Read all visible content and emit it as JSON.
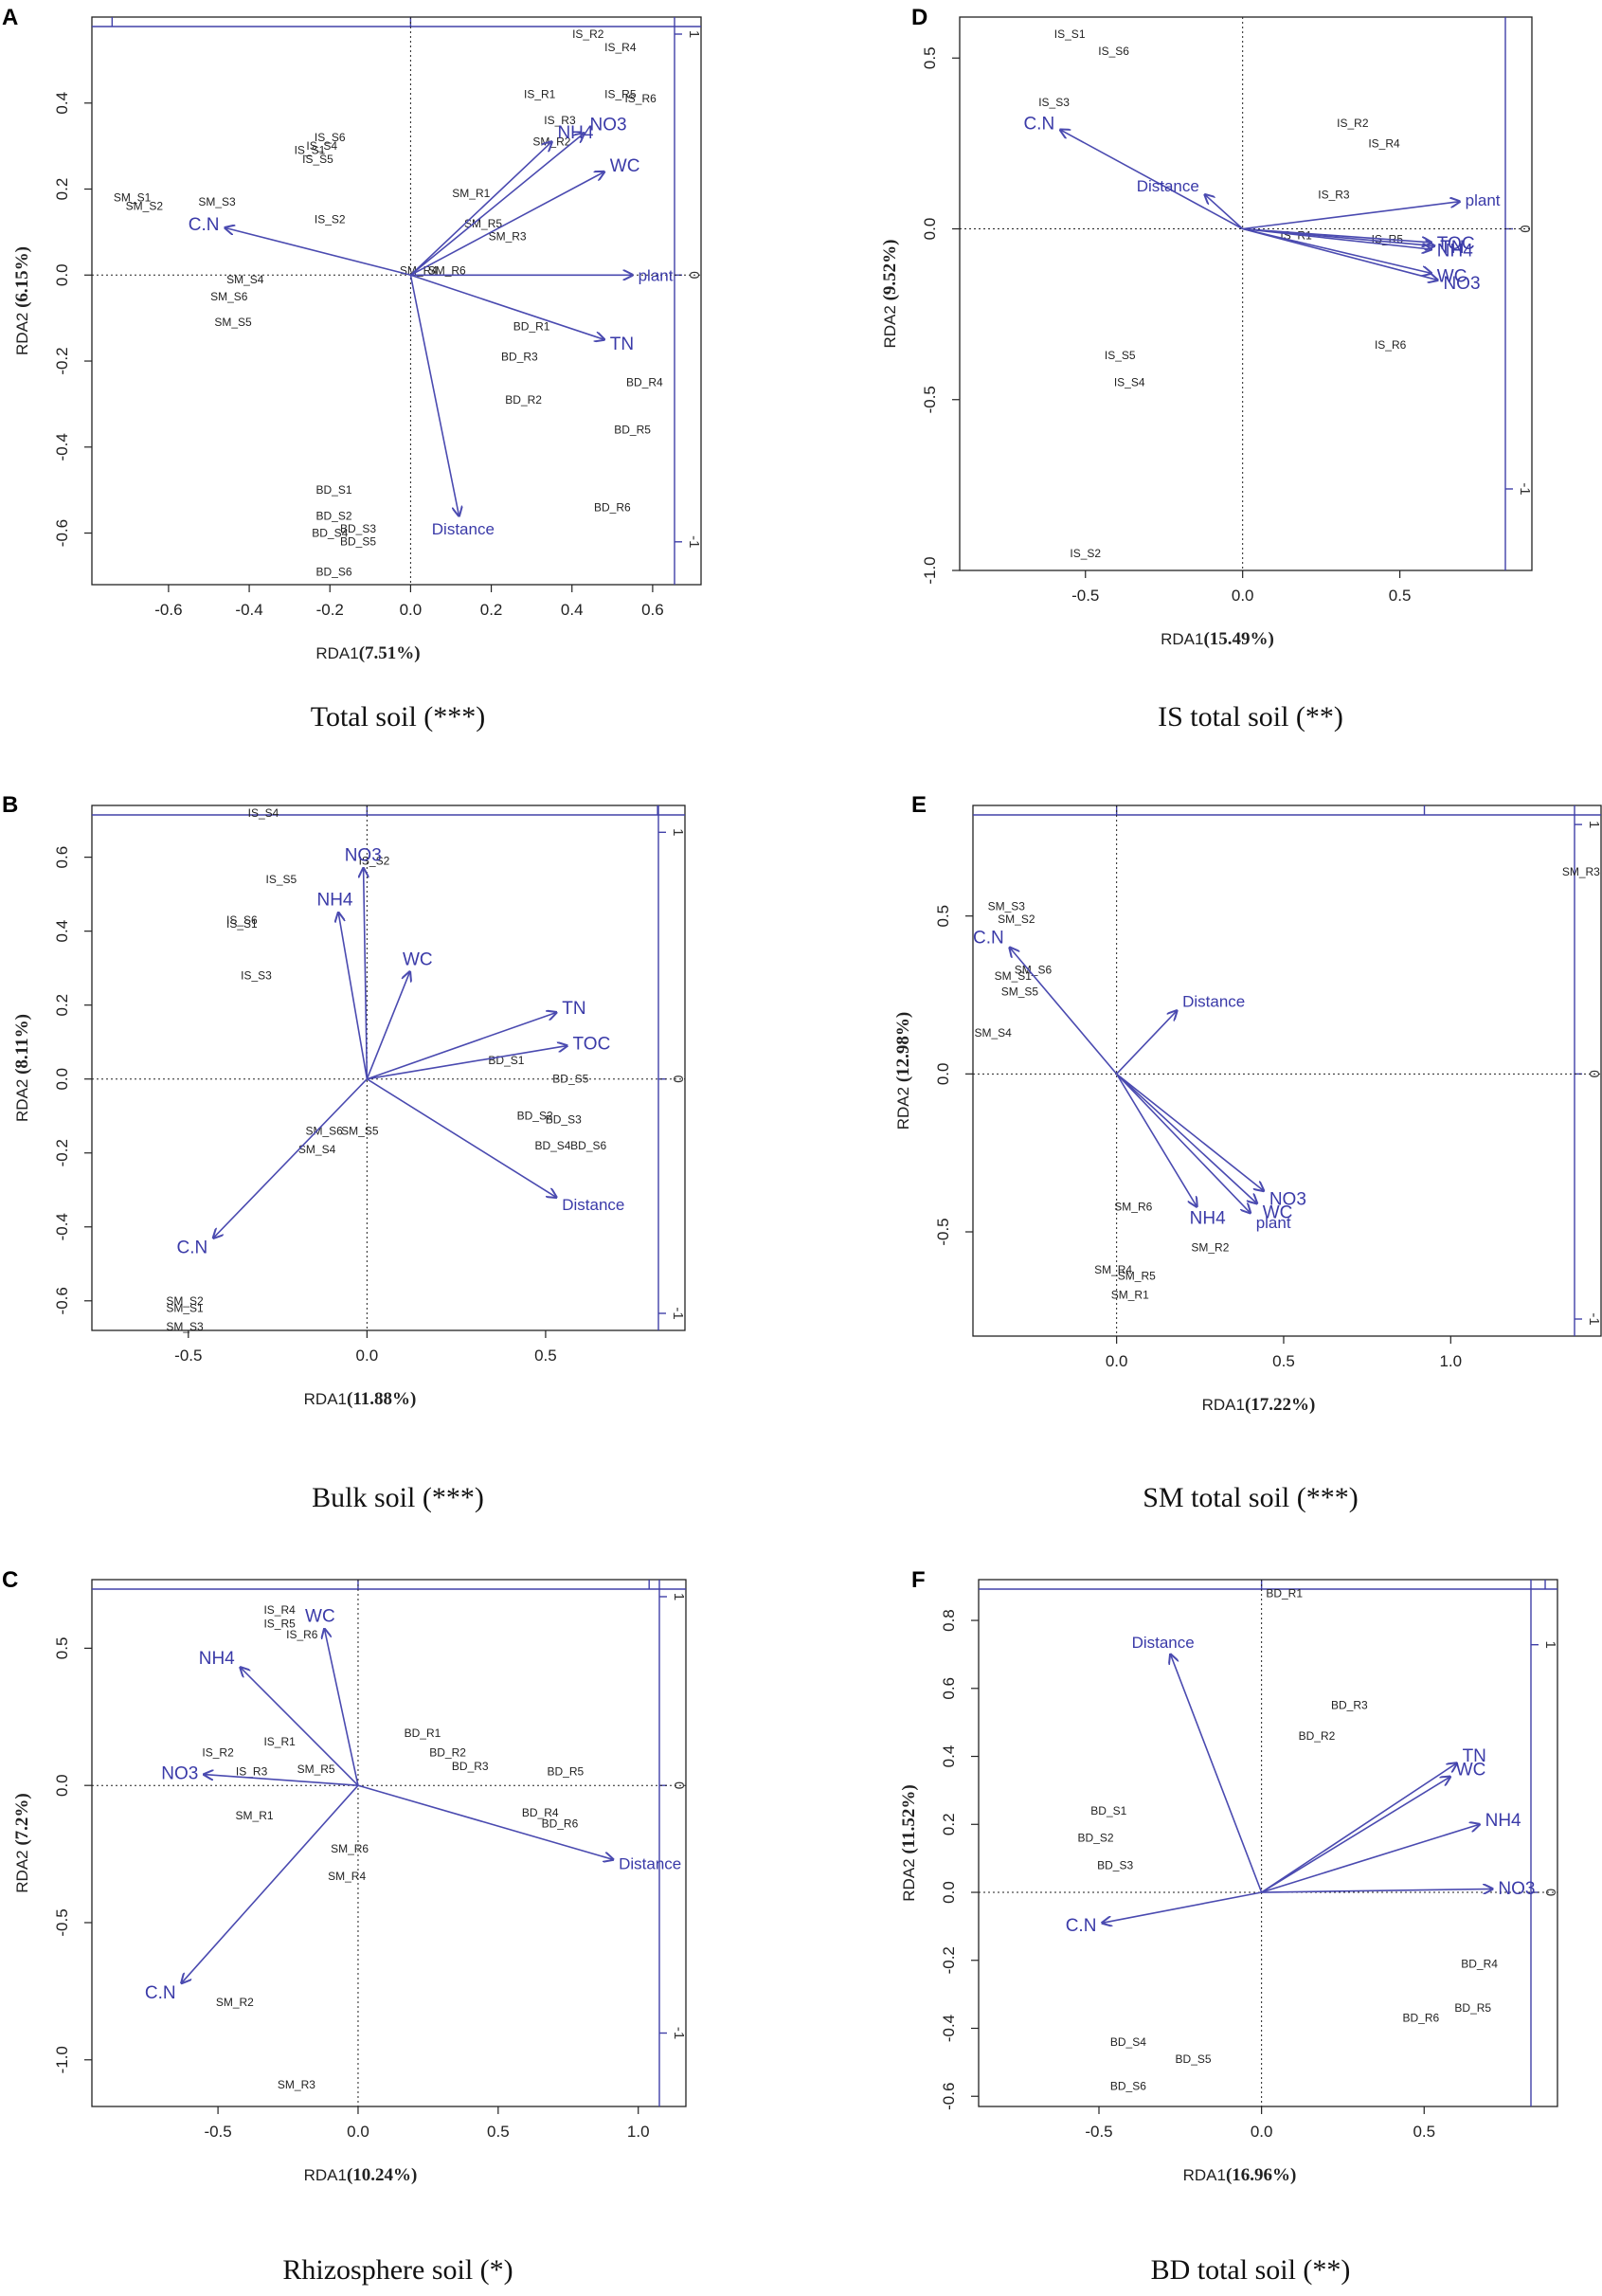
{
  "chart_data": [
    {
      "panel": "A",
      "type": "scatter",
      "title": "Total soil (***)",
      "xlabel": "RDA1",
      "xpct": "(7.51%)",
      "ylabel": "RDA2",
      "ypct": "(6.15%)",
      "xticks": [
        -0.6,
        -0.4,
        -0.2,
        0.0,
        0.2,
        0.4,
        0.6
      ],
      "yticks": [
        -0.6,
        -0.4,
        -0.2,
        0.0,
        0.2,
        0.4
      ],
      "xlim": [
        -0.79,
        0.72
      ],
      "ylim": [
        -0.72,
        0.6
      ],
      "sec_y_ticks": [
        -1,
        0,
        1
      ],
      "sites": [
        {
          "label": "IS_R2",
          "x": 0.44,
          "y": 0.56
        },
        {
          "label": "IS_R4",
          "x": 0.52,
          "y": 0.53
        },
        {
          "label": "IS_R1",
          "x": 0.32,
          "y": 0.42
        },
        {
          "label": "IS_R5",
          "x": 0.52,
          "y": 0.42
        },
        {
          "label": "IS_R6",
          "x": 0.57,
          "y": 0.41
        },
        {
          "label": "IS_R3",
          "x": 0.37,
          "y": 0.36
        },
        {
          "label": "SM_R2",
          "x": 0.35,
          "y": 0.31
        },
        {
          "label": "IS_S6",
          "x": -0.2,
          "y": 0.32
        },
        {
          "label": "IS_S4",
          "x": -0.22,
          "y": 0.3
        },
        {
          "label": "IS_S1",
          "x": -0.25,
          "y": 0.29
        },
        {
          "label": "IS_S5",
          "x": -0.23,
          "y": 0.27
        },
        {
          "label": "SM_R1",
          "x": 0.15,
          "y": 0.19
        },
        {
          "label": "SM_S1",
          "x": -0.69,
          "y": 0.18
        },
        {
          "label": "SM_S2",
          "x": -0.66,
          "y": 0.16
        },
        {
          "label": "SM_S3",
          "x": -0.48,
          "y": 0.17
        },
        {
          "label": "IS_S2",
          "x": -0.2,
          "y": 0.13
        },
        {
          "label": "SM_R5",
          "x": 0.18,
          "y": 0.12
        },
        {
          "label": "SM_R3",
          "x": 0.24,
          "y": 0.09
        },
        {
          "label": "SM_R4",
          "x": 0.02,
          "y": 0.01
        },
        {
          "label": "SM_R6",
          "x": 0.09,
          "y": 0.01
        },
        {
          "label": "SM_S4",
          "x": -0.41,
          "y": -0.01
        },
        {
          "label": "SM_S6",
          "x": -0.45,
          "y": -0.05
        },
        {
          "label": "SM_S5",
          "x": -0.44,
          "y": -0.11
        },
        {
          "label": "BD_R1",
          "x": 0.3,
          "y": -0.12
        },
        {
          "label": "BD_R3",
          "x": 0.27,
          "y": -0.19
        },
        {
          "label": "BD_R4",
          "x": 0.58,
          "y": -0.25
        },
        {
          "label": "BD_R2",
          "x": 0.28,
          "y": -0.29
        },
        {
          "label": "BD_R5",
          "x": 0.55,
          "y": -0.36
        },
        {
          "label": "BD_R6",
          "x": 0.5,
          "y": -0.54
        },
        {
          "label": "BD_S1",
          "x": -0.19,
          "y": -0.5
        },
        {
          "label": "BD_S2",
          "x": -0.19,
          "y": -0.56
        },
        {
          "label": "BD_S3",
          "x": -0.13,
          "y": -0.59
        },
        {
          "label": "BD_S4",
          "x": -0.2,
          "y": -0.6
        },
        {
          "label": "BD_S5",
          "x": -0.13,
          "y": -0.62
        },
        {
          "label": "BD_S6",
          "x": -0.19,
          "y": -0.69
        }
      ],
      "vectors": [
        {
          "label": "NH4",
          "x": 0.35,
          "y": 0.31
        },
        {
          "label": "NO3",
          "x": 0.43,
          "y": 0.33
        },
        {
          "label": "WC",
          "x": 0.48,
          "y": 0.24
        },
        {
          "label": "C.N",
          "x": -0.46,
          "y": 0.11
        },
        {
          "label": "plant",
          "x": 0.55,
          "y": 0.0
        },
        {
          "label": "TN",
          "x": 0.48,
          "y": -0.15
        },
        {
          "label": "Distance",
          "x": 0.12,
          "y": -0.56
        }
      ]
    },
    {
      "panel": "B",
      "type": "scatter",
      "title": "Bulk soil (***)",
      "xlabel": "RDA1",
      "xpct": "(11.88%)",
      "ylabel": "RDA2",
      "ypct": "(8.11%)",
      "xticks": [
        -0.5,
        0.0,
        0.5
      ],
      "yticks": [
        -0.6,
        -0.4,
        -0.2,
        0.0,
        0.2,
        0.4,
        0.6
      ],
      "xlim": [
        -0.77,
        0.89
      ],
      "ylim": [
        -0.68,
        0.74
      ],
      "sec_y_ticks": [
        -1,
        0,
        1
      ],
      "sites": [
        {
          "label": "IS_S4",
          "x": -0.29,
          "y": 0.72
        },
        {
          "label": "IS_S2",
          "x": 0.02,
          "y": 0.59
        },
        {
          "label": "IS_S5",
          "x": -0.24,
          "y": 0.54
        },
        {
          "label": "IS_S6",
          "x": -0.35,
          "y": 0.43
        },
        {
          "label": "IS_S1",
          "x": -0.35,
          "y": 0.42
        },
        {
          "label": "IS_S3",
          "x": -0.31,
          "y": 0.28
        },
        {
          "label": "BD_S1",
          "x": 0.39,
          "y": 0.05
        },
        {
          "label": "BD_S5",
          "x": 0.57,
          "y": 0.0
        },
        {
          "label": "BD_S2",
          "x": 0.47,
          "y": -0.1
        },
        {
          "label": "BD_S3",
          "x": 0.55,
          "y": -0.11
        },
        {
          "label": "BD_S4",
          "x": 0.52,
          "y": -0.18
        },
        {
          "label": "BD_S6",
          "x": 0.62,
          "y": -0.18
        },
        {
          "label": "SM_S6",
          "x": -0.12,
          "y": -0.14
        },
        {
          "label": "SM_S5",
          "x": -0.02,
          "y": -0.14
        },
        {
          "label": "SM_S4",
          "x": -0.14,
          "y": -0.19
        },
        {
          "label": "SM_S2",
          "x": -0.51,
          "y": -0.6
        },
        {
          "label": "SM_S1",
          "x": -0.51,
          "y": -0.62
        },
        {
          "label": "SM_S3",
          "x": -0.51,
          "y": -0.67
        }
      ],
      "vectors": [
        {
          "label": "NO3",
          "x": -0.01,
          "y": 0.57
        },
        {
          "label": "NH4",
          "x": -0.08,
          "y": 0.45
        },
        {
          "label": "WC",
          "x": 0.12,
          "y": 0.29
        },
        {
          "label": "TN",
          "x": 0.53,
          "y": 0.18
        },
        {
          "label": "TOC",
          "x": 0.56,
          "y": 0.09
        },
        {
          "label": "Distance",
          "x": 0.53,
          "y": -0.32
        },
        {
          "label": "C.N",
          "x": -0.43,
          "y": -0.43
        }
      ]
    },
    {
      "panel": "C",
      "type": "scatter",
      "title": "Rhizosphere soil (*)",
      "xlabel": "RDA1",
      "xpct": "(10.24%)",
      "ylabel": "RDA2",
      "ypct": "(7.2%)",
      "xticks": [
        -0.5,
        0.0,
        0.5,
        1.0
      ],
      "yticks": [
        -1.0,
        -0.5,
        0.0,
        0.5
      ],
      "xlim": [
        -0.95,
        1.17
      ],
      "ylim": [
        -1.17,
        0.75
      ],
      "sec_y_ticks": [
        -1,
        0,
        1
      ],
      "sites": [
        {
          "label": "IS_R4",
          "x": -0.28,
          "y": 0.64
        },
        {
          "label": "IS_R5",
          "x": -0.28,
          "y": 0.59
        },
        {
          "label": "IS_R6",
          "x": -0.2,
          "y": 0.55
        },
        {
          "label": "IS_R1",
          "x": -0.28,
          "y": 0.16
        },
        {
          "label": "IS_R2",
          "x": -0.5,
          "y": 0.12
        },
        {
          "label": "IS_R3",
          "x": -0.38,
          "y": 0.05
        },
        {
          "label": "SM_R5",
          "x": -0.15,
          "y": 0.06
        },
        {
          "label": "SM_R1",
          "x": -0.37,
          "y": -0.11
        },
        {
          "label": "BD_R1",
          "x": 0.23,
          "y": 0.19
        },
        {
          "label": "BD_R2",
          "x": 0.32,
          "y": 0.12
        },
        {
          "label": "BD_R3",
          "x": 0.4,
          "y": 0.07
        },
        {
          "label": "BD_R5",
          "x": 0.74,
          "y": 0.05
        },
        {
          "label": "BD_R4",
          "x": 0.65,
          "y": -0.1
        },
        {
          "label": "BD_R6",
          "x": 0.72,
          "y": -0.14
        },
        {
          "label": "SM_R6",
          "x": -0.03,
          "y": -0.23
        },
        {
          "label": "SM_R4",
          "x": -0.04,
          "y": -0.33
        },
        {
          "label": "SM_R2",
          "x": -0.44,
          "y": -0.79
        },
        {
          "label": "SM_R3",
          "x": -0.22,
          "y": -1.09
        }
      ],
      "vectors": [
        {
          "label": "WC",
          "x": -0.12,
          "y": 0.57
        },
        {
          "label": "NH4",
          "x": -0.42,
          "y": 0.43
        },
        {
          "label": "NO3",
          "x": -0.55,
          "y": 0.04
        },
        {
          "label": "Distance",
          "x": 0.91,
          "y": -0.27
        },
        {
          "label": "C.N",
          "x": -0.63,
          "y": -0.72
        }
      ]
    },
    {
      "panel": "D",
      "type": "scatter",
      "title": "IS total soil (**)",
      "xlabel": "RDA1",
      "xpct": "(15.49%)",
      "ylabel": "RDA2",
      "ypct": "(9.52%)",
      "xticks": [
        -0.5,
        0.0,
        0.5
      ],
      "yticks": [
        -1.0,
        -0.5,
        0.0,
        0.5
      ],
      "xlim": [
        -0.9,
        0.92
      ],
      "ylim": [
        -1.0,
        0.62
      ],
      "sec_y_ticks": [
        -1,
        0
      ],
      "sites": [
        {
          "label": "IS_S1",
          "x": -0.55,
          "y": 0.57
        },
        {
          "label": "IS_S6",
          "x": -0.41,
          "y": 0.52
        },
        {
          "label": "IS_S3",
          "x": -0.6,
          "y": 0.37
        },
        {
          "label": "IS_R2",
          "x": 0.35,
          "y": 0.31
        },
        {
          "label": "IS_R4",
          "x": 0.45,
          "y": 0.25
        },
        {
          "label": "IS_R3",
          "x": 0.29,
          "y": 0.1
        },
        {
          "label": "IS_R1",
          "x": 0.17,
          "y": -0.02
        },
        {
          "label": "IS_R5",
          "x": 0.46,
          "y": -0.03
        },
        {
          "label": "IS_R6",
          "x": 0.47,
          "y": -0.34
        },
        {
          "label": "IS_S5",
          "x": -0.39,
          "y": -0.37
        },
        {
          "label": "IS_S4",
          "x": -0.36,
          "y": -0.45
        },
        {
          "label": "IS_S2",
          "x": -0.5,
          "y": -0.95
        }
      ],
      "vectors": [
        {
          "label": "C.N",
          "x": -0.58,
          "y": 0.29
        },
        {
          "label": "Distance",
          "x": -0.12,
          "y": 0.1
        },
        {
          "label": "plant",
          "x": 0.69,
          "y": 0.08
        },
        {
          "label": "TOC",
          "x": 0.6,
          "y": -0.04
        },
        {
          "label": "TN",
          "x": 0.61,
          "y": -0.05
        },
        {
          "label": "NH4",
          "x": 0.6,
          "y": -0.06
        },
        {
          "label": "WC",
          "x": 0.6,
          "y": -0.13
        },
        {
          "label": "NO3",
          "x": 0.62,
          "y": -0.15
        }
      ]
    },
    {
      "panel": "E",
      "type": "scatter",
      "title": "SM total soil (***)",
      "xlabel": "RDA1",
      "xpct": "(17.22%)",
      "ylabel": "RDA2",
      "ypct": "(12.98%)",
      "xticks": [
        0.0,
        0.5,
        1.0
      ],
      "yticks": [
        -0.5,
        0.0,
        0.5
      ],
      "xlim": [
        -0.43,
        1.45
      ],
      "ylim": [
        -0.83,
        0.85
      ],
      "sec_y_ticks": [
        -1,
        0,
        1
      ],
      "sites": [
        {
          "label": "SM_S3",
          "x": -0.33,
          "y": 0.53
        },
        {
          "label": "SM_S2",
          "x": -0.3,
          "y": 0.49
        },
        {
          "label": "SM_S6",
          "x": -0.25,
          "y": 0.33
        },
        {
          "label": "SM_S1",
          "x": -0.31,
          "y": 0.31
        },
        {
          "label": "SM_S5",
          "x": -0.29,
          "y": 0.26
        },
        {
          "label": "SM_S4",
          "x": -0.37,
          "y": 0.13
        },
        {
          "label": "SM_R3",
          "x": 1.39,
          "y": 0.64
        },
        {
          "label": "SM_R6",
          "x": 0.05,
          "y": -0.42
        },
        {
          "label": "SM_R2",
          "x": 0.28,
          "y": -0.55
        },
        {
          "label": "SM_R4",
          "x": -0.01,
          "y": -0.62
        },
        {
          "label": "SM_R5",
          "x": 0.06,
          "y": -0.64
        },
        {
          "label": "SM_R1",
          "x": 0.04,
          "y": -0.7
        }
      ],
      "vectors": [
        {
          "label": "C.N",
          "x": -0.32,
          "y": 0.4
        },
        {
          "label": "Distance",
          "x": 0.18,
          "y": 0.2
        },
        {
          "label": "NH4",
          "x": 0.24,
          "y": -0.42
        },
        {
          "label": "NO3",
          "x": 0.44,
          "y": -0.37
        },
        {
          "label": "WC",
          "x": 0.42,
          "y": -0.41
        },
        {
          "label": "plant",
          "x": 0.4,
          "y": -0.44
        }
      ]
    },
    {
      "panel": "F",
      "type": "scatter",
      "title": "BD total soil (**)",
      "xlabel": "RDA1",
      "xpct": "(16.96%)",
      "ylabel": "RDA2",
      "ypct": "(11.52%)",
      "xticks": [
        -0.5,
        0.0,
        0.5
      ],
      "yticks": [
        -0.6,
        -0.4,
        -0.2,
        0.0,
        0.2,
        0.4,
        0.6,
        0.8
      ],
      "xlim": [
        -0.87,
        0.91
      ],
      "ylim": [
        -0.63,
        0.92
      ],
      "sec_y_ticks": [
        0,
        1
      ],
      "sites": [
        {
          "label": "BD_R1",
          "x": 0.07,
          "y": 0.88
        },
        {
          "label": "BD_R3",
          "x": 0.27,
          "y": 0.55
        },
        {
          "label": "BD_R2",
          "x": 0.17,
          "y": 0.46
        },
        {
          "label": "BD_S1",
          "x": -0.47,
          "y": 0.24
        },
        {
          "label": "BD_S2",
          "x": -0.51,
          "y": 0.16
        },
        {
          "label": "BD_S3",
          "x": -0.45,
          "y": 0.08
        },
        {
          "label": "BD_R4",
          "x": 0.67,
          "y": -0.21
        },
        {
          "label": "BD_R5",
          "x": 0.65,
          "y": -0.34
        },
        {
          "label": "BD_R6",
          "x": 0.49,
          "y": -0.37
        },
        {
          "label": "BD_S4",
          "x": -0.41,
          "y": -0.44
        },
        {
          "label": "BD_S5",
          "x": -0.21,
          "y": -0.49
        },
        {
          "label": "BD_S6",
          "x": -0.41,
          "y": -0.57
        }
      ],
      "vectors": [
        {
          "label": "Distance",
          "x": -0.28,
          "y": 0.7
        },
        {
          "label": "TN",
          "x": 0.6,
          "y": 0.38
        },
        {
          "label": "WC",
          "x": 0.58,
          "y": 0.34
        },
        {
          "label": "NH4",
          "x": 0.67,
          "y": 0.2
        },
        {
          "label": "NO3",
          "x": 0.71,
          "y": 0.01
        },
        {
          "label": "C.N",
          "x": -0.49,
          "y": -0.09
        }
      ]
    }
  ]
}
